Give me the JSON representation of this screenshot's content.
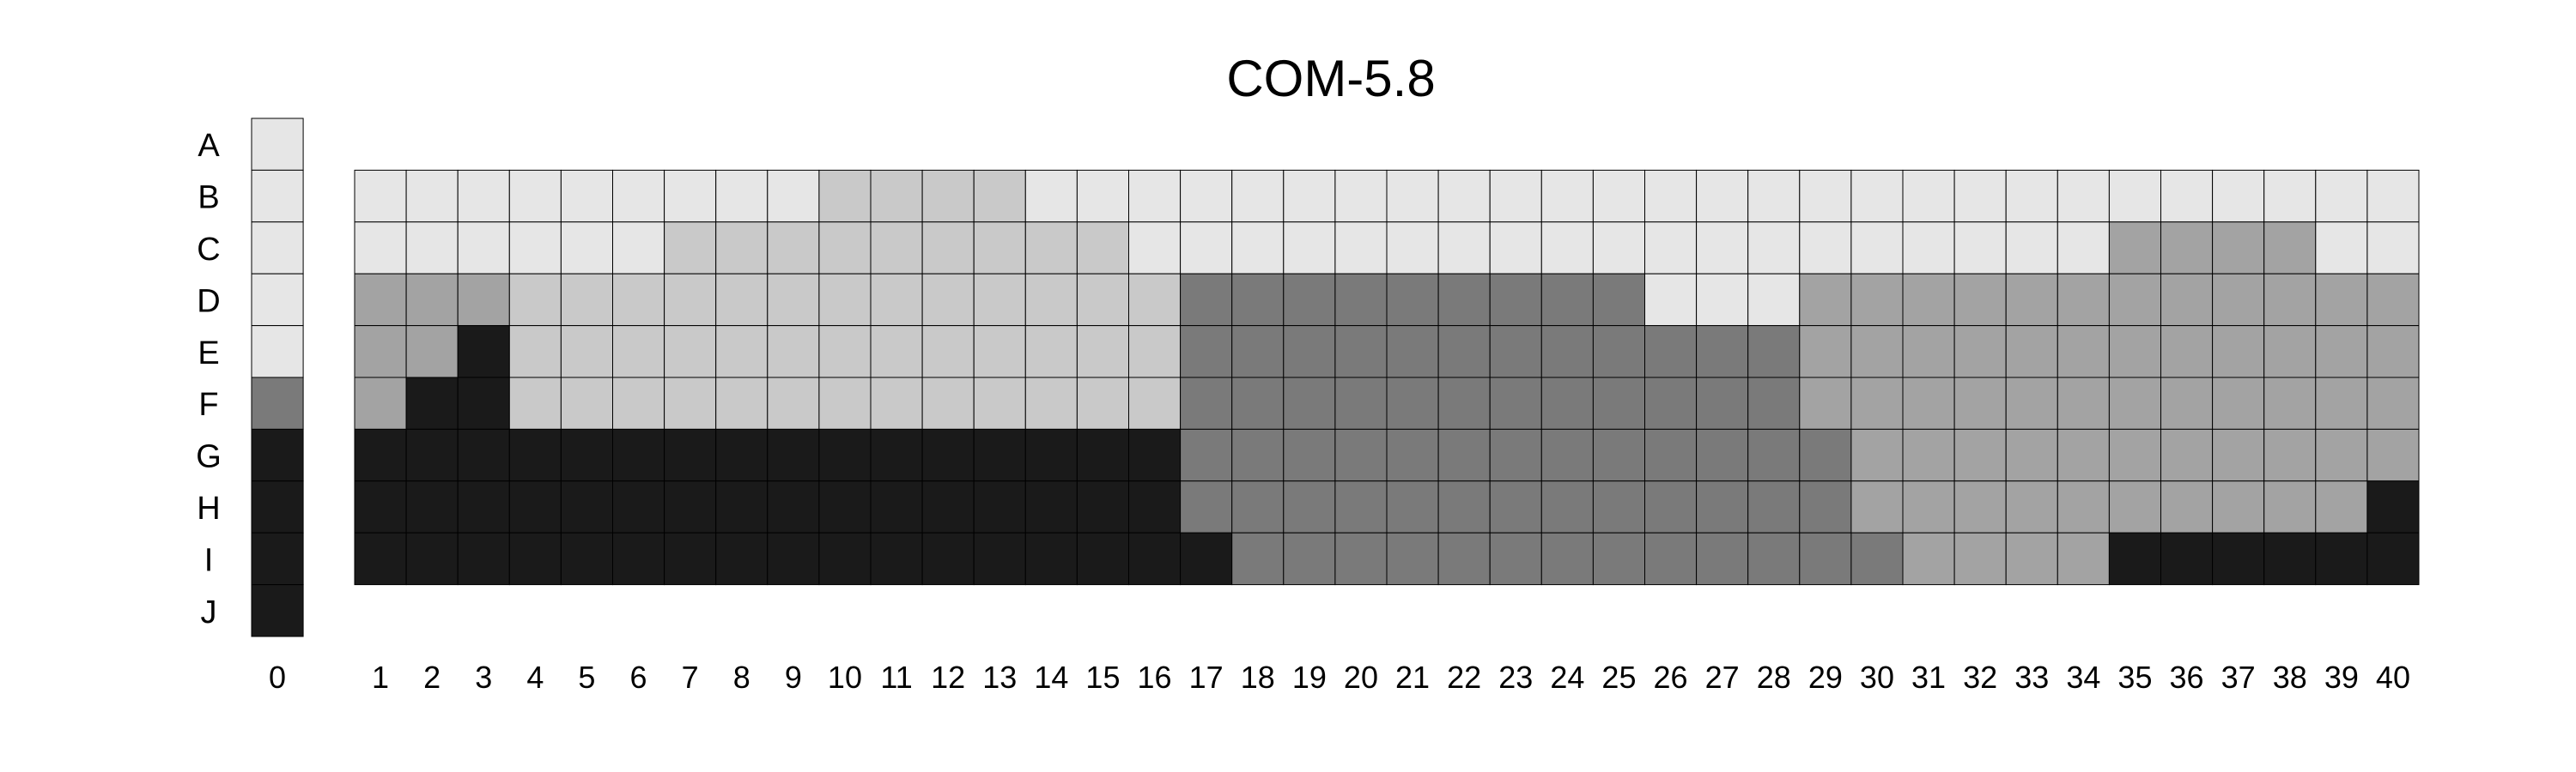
{
  "chart_data": {
    "type": "heatmap",
    "title": "COM-5.8",
    "xlabel": "",
    "ylabel": "",
    "legend": "none",
    "row_labels": [
      "A",
      "B",
      "C",
      "D",
      "E",
      "F",
      "G",
      "H",
      "I",
      "J"
    ],
    "column_labels": [
      "0",
      "1",
      "2",
      "3",
      "4",
      "5",
      "6",
      "7",
      "8",
      "9",
      "10",
      "11",
      "12",
      "13",
      "14",
      "15",
      "16",
      "17",
      "18",
      "19",
      "20",
      "21",
      "22",
      "23",
      "24",
      "25",
      "26",
      "27",
      "28",
      "29",
      "30",
      "31",
      "32",
      "33",
      "34",
      "35",
      "36",
      "37",
      "38",
      "39",
      "40"
    ],
    "colors": {
      "L0": "#e6e6e6",
      "L1": "#c9c9c9",
      "L2": "#a3a3a3",
      "L3": "#7a7a7a",
      "L4": "#1a1a1a"
    },
    "column_0": [
      0,
      0,
      0,
      0,
      0,
      3,
      4,
      4,
      4,
      4
    ],
    "grid_rows": [
      "B",
      "C",
      "D",
      "E",
      "F",
      "G",
      "H",
      "I"
    ],
    "grid": [
      [
        0,
        0,
        0,
        0,
        0,
        0,
        0,
        0,
        0,
        1,
        1,
        1,
        1,
        0,
        0,
        0,
        0,
        0,
        0,
        0,
        0,
        0,
        0,
        0,
        0,
        0,
        0,
        0,
        0,
        0,
        0,
        0,
        0,
        0,
        0,
        0,
        0,
        0,
        0,
        0
      ],
      [
        0,
        0,
        0,
        0,
        0,
        0,
        1,
        1,
        1,
        1,
        1,
        1,
        1,
        1,
        1,
        0,
        0,
        0,
        0,
        0,
        0,
        0,
        0,
        0,
        0,
        0,
        0,
        0,
        0,
        0,
        0,
        0,
        0,
        0,
        2,
        2,
        2,
        2,
        0,
        0
      ],
      [
        2,
        2,
        2,
        1,
        1,
        1,
        1,
        1,
        1,
        1,
        1,
        1,
        1,
        1,
        1,
        1,
        3,
        3,
        3,
        3,
        3,
        3,
        3,
        3,
        3,
        0,
        0,
        0,
        2,
        2,
        2,
        2,
        2,
        2,
        2,
        2,
        2,
        2,
        2,
        2
      ],
      [
        2,
        2,
        4,
        1,
        1,
        1,
        1,
        1,
        1,
        1,
        1,
        1,
        1,
        1,
        1,
        1,
        3,
        3,
        3,
        3,
        3,
        3,
        3,
        3,
        3,
        3,
        3,
        3,
        2,
        2,
        2,
        2,
        2,
        2,
        2,
        2,
        2,
        2,
        2,
        2
      ],
      [
        2,
        4,
        4,
        1,
        1,
        1,
        1,
        1,
        1,
        1,
        1,
        1,
        1,
        1,
        1,
        1,
        3,
        3,
        3,
        3,
        3,
        3,
        3,
        3,
        3,
        3,
        3,
        3,
        2,
        2,
        2,
        2,
        2,
        2,
        2,
        2,
        2,
        2,
        2,
        2
      ],
      [
        4,
        4,
        4,
        4,
        4,
        4,
        4,
        4,
        4,
        4,
        4,
        4,
        4,
        4,
        4,
        4,
        3,
        3,
        3,
        3,
        3,
        3,
        3,
        3,
        3,
        3,
        3,
        3,
        3,
        2,
        2,
        2,
        2,
        2,
        2,
        2,
        2,
        2,
        2,
        2
      ],
      [
        4,
        4,
        4,
        4,
        4,
        4,
        4,
        4,
        4,
        4,
        4,
        4,
        4,
        4,
        4,
        4,
        3,
        3,
        3,
        3,
        3,
        3,
        3,
        3,
        3,
        3,
        3,
        3,
        3,
        2,
        2,
        2,
        2,
        2,
        2,
        2,
        2,
        2,
        2,
        4
      ],
      [
        4,
        4,
        4,
        4,
        4,
        4,
        4,
        4,
        4,
        4,
        4,
        4,
        4,
        4,
        4,
        4,
        4,
        3,
        3,
        3,
        3,
        3,
        3,
        3,
        3,
        3,
        3,
        3,
        3,
        3,
        2,
        2,
        2,
        2,
        4,
        4,
        4,
        4,
        4,
        4
      ]
    ]
  }
}
